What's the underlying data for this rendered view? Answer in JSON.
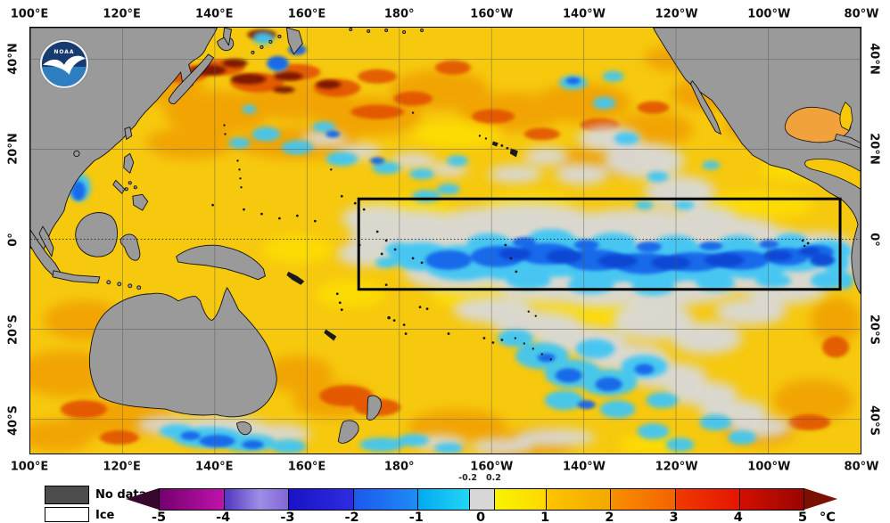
{
  "axes": {
    "top": [
      "100°E",
      "120°E",
      "140°E",
      "160°E",
      "180°",
      "160°W",
      "140°W",
      "120°W",
      "100°W",
      "80°W"
    ],
    "bottom": [
      "100°E",
      "120°E",
      "140°E",
      "160°E",
      "180°",
      "160°W",
      "140°W",
      "120°W",
      "100°W",
      "80°W"
    ],
    "left": [
      "40°N",
      "20°N",
      "0°",
      "20°S",
      "40°S"
    ],
    "right": [
      "40°N",
      "20°N",
      "0°",
      "20°S",
      "40°S"
    ]
  },
  "map": {
    "logo_text": "NOAA",
    "land_color": "#9a9a9a",
    "highlight_box_color": "#000000"
  },
  "legend": {
    "no_data": "No data",
    "ice": "Ice",
    "no_data_color": "#4d4d4d",
    "ice_color": "#ffffff"
  },
  "colorbar": {
    "unit": "°C",
    "ticks": [
      "-5",
      "-4",
      "-3",
      "-2",
      "-1",
      "0",
      "1",
      "2",
      "3",
      "4",
      "5"
    ],
    "tick_values": [
      -5,
      -4,
      -3,
      -2,
      -1,
      0,
      1,
      2,
      3,
      4,
      5
    ],
    "threshold_labels": [
      "-0.2",
      "0.2"
    ],
    "threshold_values": [
      -0.2,
      0.2
    ],
    "left_arrow_color": "#38082c",
    "right_arrow_color": "#7c1000",
    "segments": [
      {
        "from": -5,
        "to": -4,
        "css": "linear-gradient(90deg,#74006c,#c013ae)"
      },
      {
        "from": -4,
        "to": -3,
        "css": "linear-gradient(90deg,#5336c0,#9d8ee6 55%,#8365d6)"
      },
      {
        "from": -3,
        "to": -2,
        "css": "linear-gradient(90deg,#1a12c6,#2d2de0)"
      },
      {
        "from": -2,
        "to": -1,
        "css": "linear-gradient(90deg,#1c58ee,#1f8cf4)"
      },
      {
        "from": -1,
        "to": -0.2,
        "css": "linear-gradient(90deg,#02aaf2,#22d6f6)"
      },
      {
        "from": -0.2,
        "to": 0.2,
        "css": "#d7d7d7"
      },
      {
        "from": 0.2,
        "to": 1,
        "css": "linear-gradient(90deg,#f8f400,#ffd800)"
      },
      {
        "from": 1,
        "to": 2,
        "css": "linear-gradient(90deg,#fdc500,#f4a800)"
      },
      {
        "from": 2,
        "to": 3,
        "css": "linear-gradient(90deg,#f98f00,#f46300)"
      },
      {
        "from": 3,
        "to": 4,
        "css": "linear-gradient(90deg,#f13a00,#e51500)"
      },
      {
        "from": 4,
        "to": 5,
        "css": "linear-gradient(90deg,#d30f00,#9a0500)"
      }
    ]
  }
}
